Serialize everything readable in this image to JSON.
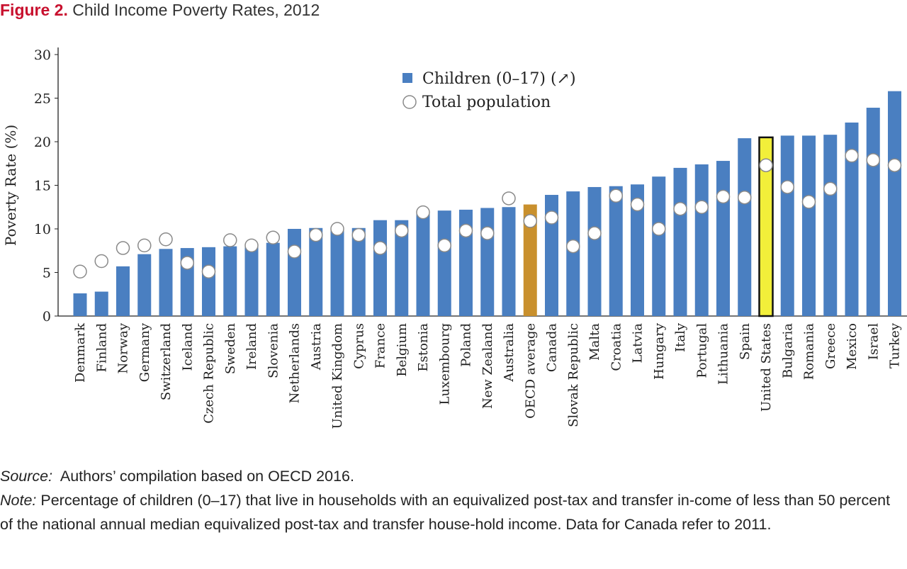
{
  "figure": {
    "label": "Figure 2.",
    "title": "Child Income Poverty Rates, 2012"
  },
  "footer": {
    "source_label": "Source:",
    "source_text": "Authors’ compilation based on OECD 2016.",
    "note_label": "Note:",
    "note_text": "Percentage of children (0–17) that live in households with an equivalized post-tax and transfer in-come of less than 50 percent of the national annual median equivalized post-tax and transfer house-hold income. Data for Canada refer to 2011."
  },
  "chart_data": {
    "type": "bar",
    "title": "Child Income Poverty Rates, 2012",
    "xlabel": "",
    "ylabel": "Poverty Rate (%)",
    "ylim": [
      0,
      30
    ],
    "yticks": [
      0,
      5,
      10,
      15,
      20,
      25,
      30
    ],
    "grid": false,
    "legend_position": "top-center",
    "categories": [
      "Denmark",
      "Finland",
      "Norway",
      "Germany",
      "Switzerland",
      "Iceland",
      "Czech Republic",
      "Sweden",
      "Ireland",
      "Slovenia",
      "Netherlands",
      "Austria",
      "United Kingdom",
      "Cyprus",
      "France",
      "Belgium",
      "Estonia",
      "Luxembourg",
      "Poland",
      "New Zealand",
      "Australia",
      "OECD average",
      "Canada",
      "Slovak Republic",
      "Malta",
      "Croatia",
      "Latvia",
      "Hungary",
      "Italy",
      "Portugal",
      "Lithuania",
      "Spain",
      "United States",
      "Bulgaria",
      "Romania",
      "Greece",
      "Mexico",
      "Israel",
      "Turkey"
    ],
    "series": [
      {
        "name": "Children (0–17) (↗)",
        "kind": "bar",
        "color": "#4a7fc1",
        "values": [
          2.6,
          2.8,
          5.7,
          7.1,
          7.7,
          7.8,
          7.9,
          8.0,
          8.0,
          8.4,
          10.0,
          10.1,
          10.1,
          10.1,
          11.0,
          11.0,
          11.8,
          12.1,
          12.2,
          12.4,
          12.5,
          12.8,
          13.9,
          14.3,
          14.8,
          14.9,
          15.1,
          16.0,
          17.0,
          17.4,
          17.8,
          20.4,
          20.5,
          20.7,
          20.7,
          20.8,
          22.2,
          23.9,
          25.8
        ]
      },
      {
        "name": "Total population",
        "kind": "marker",
        "marker": "open-circle",
        "values": [
          5.1,
          6.3,
          7.8,
          8.1,
          8.8,
          6.1,
          5.1,
          8.7,
          8.1,
          9.0,
          7.4,
          9.3,
          10.0,
          9.3,
          7.8,
          9.8,
          11.9,
          8.1,
          9.8,
          9.5,
          13.5,
          10.9,
          11.3,
          8.0,
          9.5,
          13.8,
          12.8,
          10.0,
          12.3,
          12.5,
          13.7,
          13.6,
          17.3,
          14.8,
          13.1,
          14.6,
          18.4,
          17.9,
          17.3
        ]
      }
    ],
    "highlight": {
      "OECD average": "#c9902d",
      "United States": "#f2ef3a"
    }
  }
}
